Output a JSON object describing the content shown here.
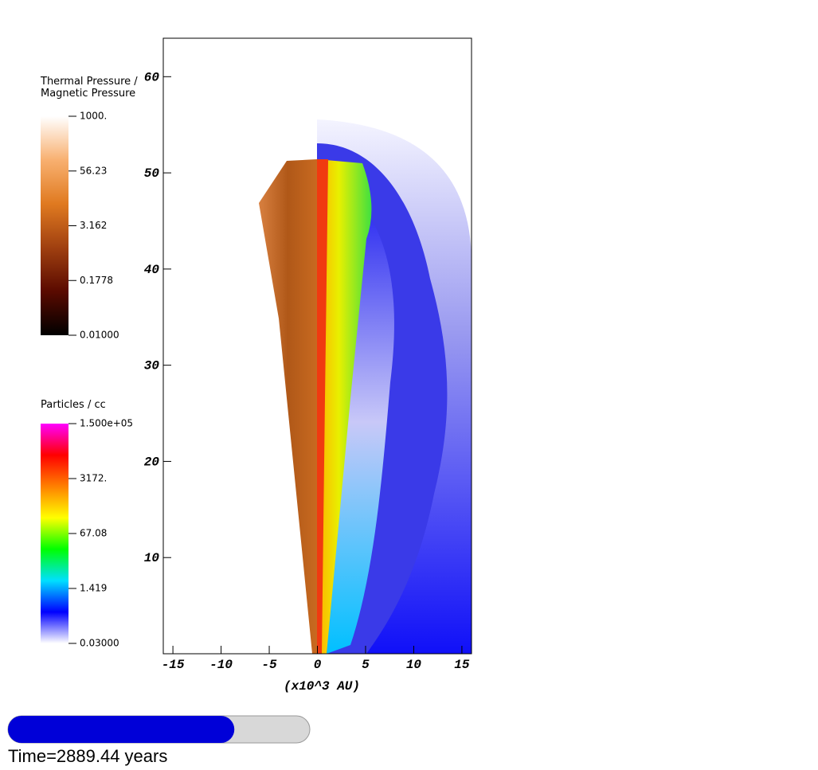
{
  "chart_data": {
    "type": "field",
    "xlabel": "(x10^3 AU)",
    "xlim": [
      -16,
      16
    ],
    "ylim": [
      0,
      64
    ],
    "xticks": [
      -15,
      -10,
      -5,
      0,
      5,
      10,
      15
    ],
    "yticks": [
      10,
      20,
      30,
      40,
      50,
      60
    ],
    "colorbars": [
      {
        "title": [
          "Thermal Pressure /",
          "Magnetic Pressure"
        ],
        "log": true,
        "colors": [
          "#000000",
          "#5a0a00",
          "#a04010",
          "#e07a20",
          "#f8b070",
          "#ffffff"
        ],
        "ticks": [
          {
            "value": 1000,
            "label": "1000."
          },
          56.23,
          3.162,
          0.1778,
          {
            "value": 0.01,
            "label": "0.01000"
          }
        ]
      },
      {
        "title": [
          "Particles / cc"
        ],
        "log": true,
        "colors": [
          "#ffffff",
          "#0000ff",
          "#00e0ff",
          "#00ff00",
          "#ffff00",
          "#ff8000",
          "#ff0000",
          "#ff00ff"
        ],
        "ticks": [
          {
            "value": 150000,
            "label": "1.500e+05"
          },
          {
            "value": 3172,
            "label": "3172."
          },
          67.08,
          1.419,
          {
            "value": 0.03,
            "label": "0.03000"
          }
        ]
      }
    ],
    "progress": 0.75,
    "time_label": "Time=2889.44 years"
  }
}
